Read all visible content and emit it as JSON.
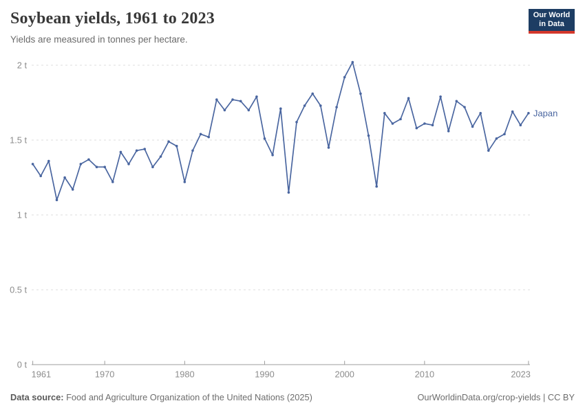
{
  "header": {
    "title": "Soybean yields, 1961 to 2023",
    "subtitle": "Yields are measured in tonnes per hectare.",
    "logo": {
      "line1": "Our World",
      "line2": "in Data"
    }
  },
  "chart_data": {
    "type": "line",
    "title": "Soybean yields, 1961 to 2023",
    "ylabel": "tonnes per hectare",
    "xlabel": "",
    "grid": true,
    "legend_position": "end-of-line",
    "xlim": [
      1961,
      2023
    ],
    "ylim": [
      0,
      2.1
    ],
    "x_ticks": [
      1961,
      1970,
      1980,
      1990,
      2000,
      2010,
      2023
    ],
    "y_ticks": [
      0,
      0.5,
      1,
      1.5,
      2
    ],
    "y_tick_labels": [
      "0 t",
      "0.5 t",
      "1 t",
      "1.5 t",
      "2 t"
    ],
    "series": [
      {
        "name": "Japan",
        "color": "#4A66A0",
        "x": [
          1961,
          1962,
          1963,
          1964,
          1965,
          1966,
          1967,
          1968,
          1969,
          1970,
          1971,
          1972,
          1973,
          1974,
          1975,
          1976,
          1977,
          1978,
          1979,
          1980,
          1981,
          1982,
          1983,
          1984,
          1985,
          1986,
          1987,
          1988,
          1989,
          1990,
          1991,
          1992,
          1993,
          1994,
          1995,
          1996,
          1997,
          1998,
          1999,
          2000,
          2001,
          2002,
          2003,
          2004,
          2005,
          2006,
          2007,
          2008,
          2009,
          2010,
          2011,
          2012,
          2013,
          2014,
          2015,
          2016,
          2017,
          2018,
          2019,
          2020,
          2021,
          2022,
          2023
        ],
        "values": [
          1.34,
          1.26,
          1.36,
          1.1,
          1.25,
          1.17,
          1.34,
          1.37,
          1.32,
          1.32,
          1.22,
          1.42,
          1.34,
          1.43,
          1.44,
          1.32,
          1.39,
          1.49,
          1.46,
          1.22,
          1.43,
          1.54,
          1.52,
          1.77,
          1.7,
          1.77,
          1.76,
          1.7,
          1.79,
          1.51,
          1.4,
          1.71,
          1.15,
          1.62,
          1.73,
          1.81,
          1.73,
          1.45,
          1.72,
          1.92,
          2.02,
          1.81,
          1.53,
          1.19,
          1.68,
          1.61,
          1.64,
          1.78,
          1.58,
          1.61,
          1.6,
          1.79,
          1.56,
          1.76,
          1.72,
          1.59,
          1.68,
          1.43,
          1.51,
          1.54,
          1.69,
          1.6,
          1.68
        ]
      }
    ]
  },
  "footer": {
    "source_label": "Data source:",
    "source_text": "Food and Agriculture Organization of the United Nations (2025)",
    "credit": "OurWorldinData.org/crop-yields | CC BY"
  }
}
